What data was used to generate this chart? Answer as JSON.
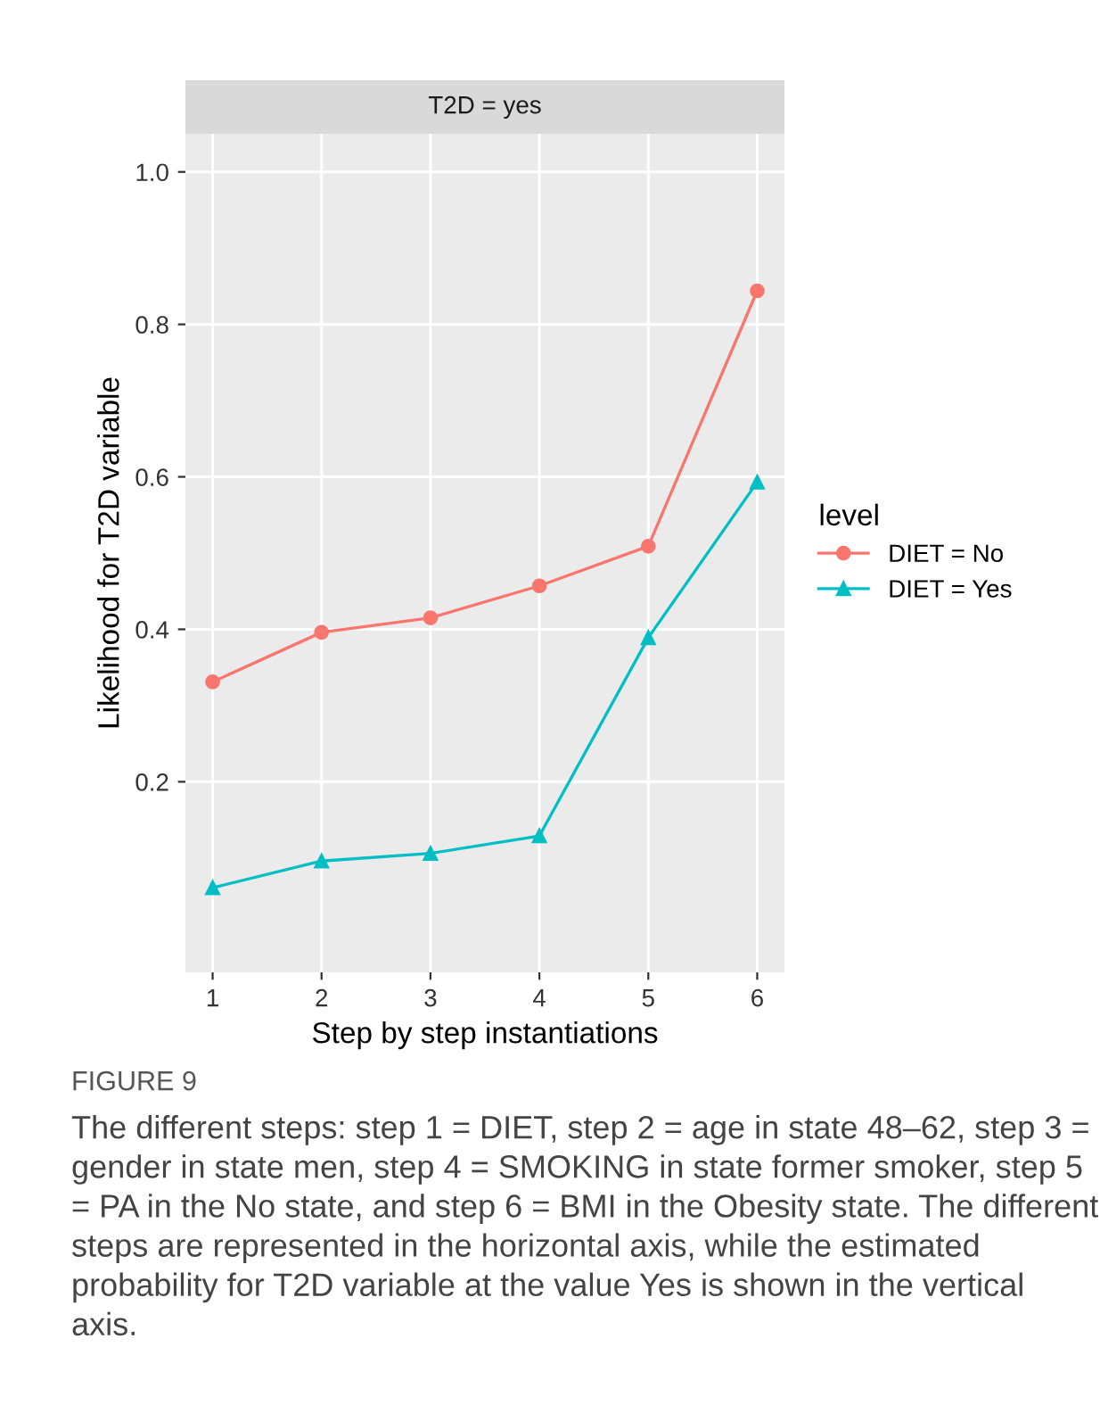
{
  "chart_data": {
    "type": "line",
    "title": "T2D = yes",
    "xlabel": "Step by step instantiations",
    "ylabel": "Likelihood for T2D variable",
    "legend_title": "level",
    "legend": "right",
    "x": [
      1,
      2,
      3,
      4,
      5,
      6
    ],
    "series": [
      {
        "name": "DIET = No",
        "color": "#f8766d",
        "marker": "circle",
        "values": [
          0.331,
          0.396,
          0.415,
          0.457,
          0.509,
          0.844
        ]
      },
      {
        "name": "DIET = Yes",
        "color": "#00bfc4",
        "marker": "triangle",
        "values": [
          0.061,
          0.096,
          0.106,
          0.129,
          0.389,
          0.593
        ]
      }
    ],
    "xlim": [
      0.75,
      6.25
    ],
    "xticks": [
      1,
      2,
      3,
      4,
      5,
      6
    ],
    "ylim": [
      -0.05,
      1.05
    ],
    "yticks": [
      0.2,
      0.4,
      0.6,
      0.8,
      {
        "value": 1,
        "label": "1.0"
      }
    ],
    "grid": true,
    "line_style": "solid",
    "annotations": [
      "FIGURE 9",
      "The different steps: step 1 = DIET, step 2 = age in state 48–62, step 3 = gender in state men, step 4 = SMOKING in state former smoker, step 5 = PA in the No state, and step 6 = BMI in the Obesity state. The different steps are represented in the horizontal axis, while the estimated probability for T2D variable at the value Yes is shown in the vertical axis."
    ]
  }
}
